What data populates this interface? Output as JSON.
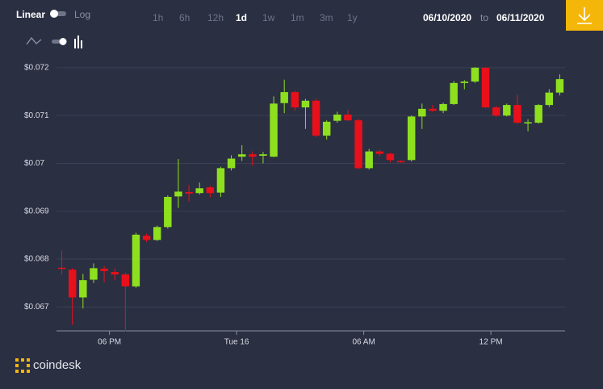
{
  "toolbar": {
    "scale_options": [
      "Linear",
      "Log"
    ],
    "ranges": [
      "1h",
      "6h",
      "12h",
      "1d",
      "1w",
      "1m",
      "3m",
      "1y"
    ],
    "active_range": 3,
    "date_from": "06/10/2020",
    "date_sep": "to",
    "date_to": "06/11/2020"
  },
  "brand": "coindesk",
  "chart_data": {
    "type": "candlestick",
    "open": [
      0.06782,
      0.06778,
      0.0672,
      0.06757,
      0.0678,
      0.06773,
      0.06768,
      0.06743,
      0.06849,
      0.0684,
      0.06867,
      0.06931,
      0.0694,
      0.06938,
      0.0695,
      0.06939,
      0.0699,
      0.07014,
      0.07019,
      0.07016,
      0.07014,
      0.07126,
      0.07149,
      0.07117,
      0.07131,
      0.07058,
      0.07089,
      0.07102,
      0.0709,
      0.0699,
      0.07025,
      0.0702,
      0.07005,
      0.07007,
      0.07098,
      0.07114,
      0.0711,
      0.07124,
      0.07168,
      0.07171,
      0.072,
      0.07117,
      0.071,
      0.07122,
      0.07084,
      0.07085,
      0.07122,
      0.07148
    ],
    "high": [
      0.06818,
      0.06781,
      0.06769,
      0.06791,
      0.06785,
      0.0678,
      0.06772,
      0.06855,
      0.06853,
      0.0687,
      0.06933,
      0.07009,
      0.06955,
      0.0696,
      0.06953,
      0.06993,
      0.07017,
      0.07038,
      0.07025,
      0.07024,
      0.0714,
      0.07175,
      0.07152,
      0.07135,
      0.07135,
      0.0709,
      0.07108,
      0.07112,
      0.07093,
      0.0703,
      0.07029,
      0.07022,
      0.07006,
      0.071,
      0.07125,
      0.07122,
      0.07127,
      0.07172,
      0.07174,
      0.07201,
      0.07201,
      0.0712,
      0.07125,
      0.07143,
      0.07092,
      0.07124,
      0.07155,
      0.07186
    ],
    "low": [
      0.06768,
      0.06663,
      0.06697,
      0.0675,
      0.06752,
      0.06756,
      0.06649,
      0.0674,
      0.06836,
      0.06838,
      0.06864,
      0.06907,
      0.0692,
      0.06935,
      0.06929,
      0.0693,
      0.06985,
      0.07005,
      0.06995,
      0.07,
      0.07013,
      0.07105,
      0.0711,
      0.07072,
      0.07055,
      0.0705,
      0.07085,
      0.07088,
      0.06988,
      0.06987,
      0.07015,
      0.07002,
      0.07001,
      0.07004,
      0.07072,
      0.07108,
      0.07105,
      0.07122,
      0.07155,
      0.07168,
      0.07115,
      0.07097,
      0.07098,
      0.07083,
      0.07067,
      0.07083,
      0.07118,
      0.07142
    ],
    "close": [
      0.0678,
      0.0672,
      0.06756,
      0.06781,
      0.06775,
      0.06768,
      0.06743,
      0.06851,
      0.0684,
      0.06867,
      0.0693,
      0.06941,
      0.06937,
      0.06948,
      0.06938,
      0.0699,
      0.0701,
      0.07019,
      0.07014,
      0.07019,
      0.07125,
      0.07149,
      0.07117,
      0.07131,
      0.07058,
      0.07087,
      0.07102,
      0.0709,
      0.0699,
      0.07025,
      0.0702,
      0.07007,
      0.07003,
      0.07098,
      0.07114,
      0.0711,
      0.07124,
      0.07168,
      0.07171,
      0.072,
      0.07117,
      0.071,
      0.07122,
      0.07085,
      0.07086,
      0.07122,
      0.07148,
      0.07176
    ],
    "up_color": "#8ee01f",
    "down_color": "#e8101a",
    "xlim": [
      -0.5,
      47.5
    ],
    "xticks": [
      {
        "value": 4.5,
        "label": "06 PM"
      },
      {
        "value": 16.5,
        "label": "Tue 16"
      },
      {
        "value": 28.5,
        "label": "06 AM"
      },
      {
        "value": 40.5,
        "label": "12 PM"
      }
    ],
    "ylim": [
      0.0665,
      0.0722
    ],
    "yticks": [
      {
        "value": 0.067,
        "label": "$0.067"
      },
      {
        "value": 0.068,
        "label": "$0.068"
      },
      {
        "value": 0.069,
        "label": "$0.069"
      },
      {
        "value": 0.07,
        "label": "$0.07"
      },
      {
        "value": 0.071,
        "label": "$0.071"
      },
      {
        "value": 0.072,
        "label": "$0.072"
      }
    ],
    "grid": true
  }
}
